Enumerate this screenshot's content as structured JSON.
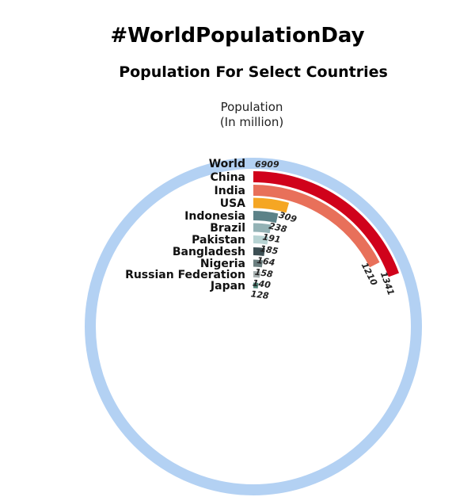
{
  "title": "#WorldPopulationDay",
  "subtitle": "Population For Select Countries",
  "measure": {
    "line1": "Population",
    "line2": "(In million)"
  },
  "chart_data": {
    "type": "radial-bar",
    "max": 6909,
    "categories": [
      "World",
      "China",
      "India",
      "USA",
      "Indonesia",
      "Brazil",
      "Pakistan",
      "Bangladesh",
      "Nigeria",
      "Russian Federation",
      "Japan"
    ],
    "values": [
      6909,
      1341,
      1210,
      309,
      238,
      191,
      185,
      164,
      158,
      140,
      128
    ],
    "value_labels": [
      "6909",
      "1341",
      "1210",
      "309",
      "238",
      "191",
      "185",
      "164",
      "158",
      "140",
      "128"
    ],
    "colors": [
      "#b3d1f3",
      "#d0021b",
      "#e8705a",
      "#f5a623",
      "#5c8288",
      "#93b2b5",
      "#b7d3d3",
      "#3d4f54",
      "#6b7f80",
      "#a7b1b1",
      "#4e8578"
    ]
  }
}
